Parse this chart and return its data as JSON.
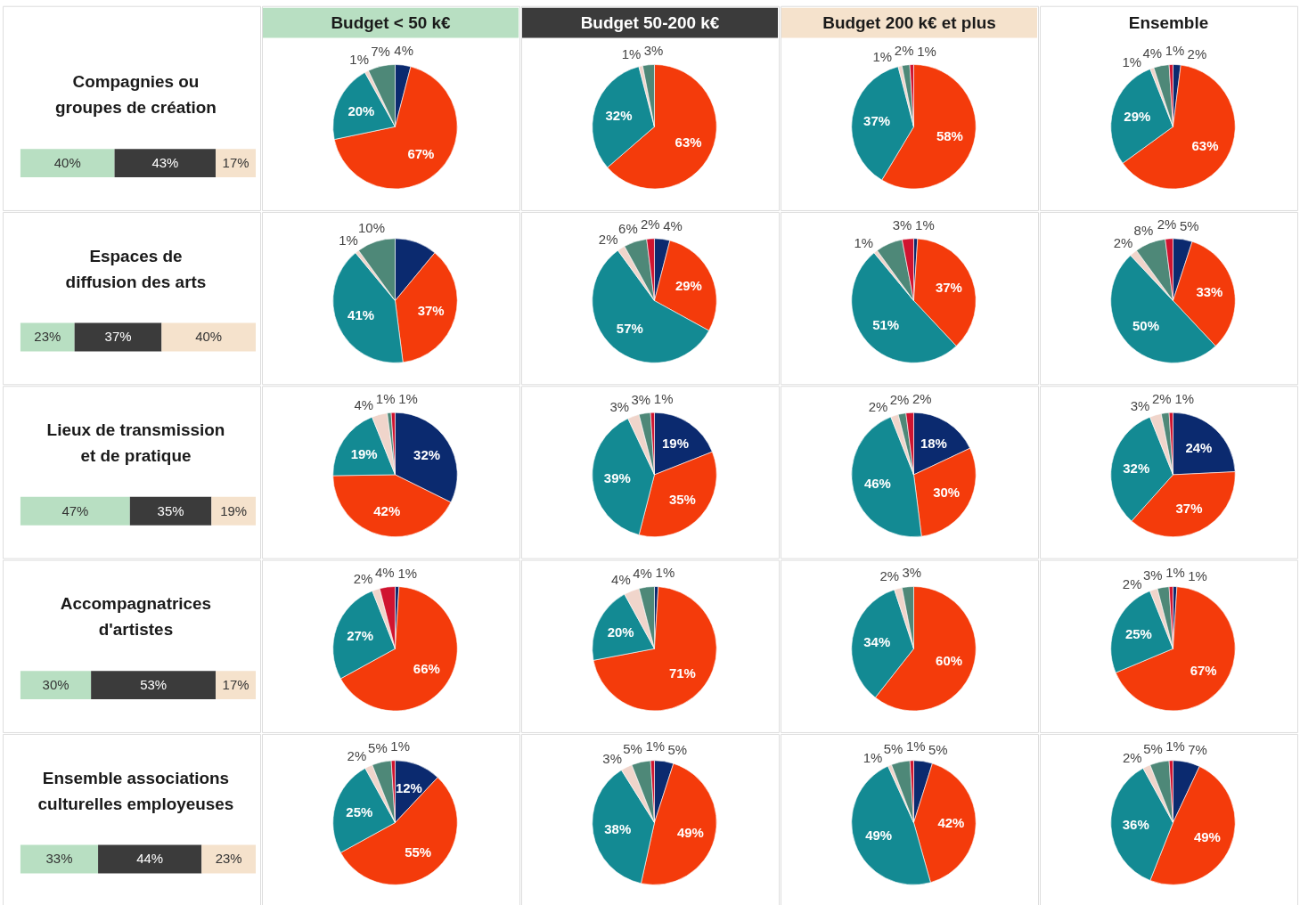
{
  "chart_data": [
    {
      "type": "bar",
      "title": "Compagnies ou groupes de création",
      "orientation": "horizontal",
      "stacked": true,
      "categories": [
        null
      ],
      "series": [
        {
          "color": "#b8dfc2",
          "values": [
            40
          ],
          "value_labels": [
            "40%"
          ]
        },
        {
          "color": "#3b3b3b",
          "values": [
            43
          ],
          "value_labels": [
            "43%"
          ]
        },
        {
          "color": "#f5e2cc",
          "values": [
            17
          ],
          "value_labels": [
            "17%"
          ]
        }
      ]
    },
    {
      "type": "pie",
      "title": "Budget < 50 k€",
      "categories": [
        null,
        null,
        null,
        null,
        null
      ],
      "values": [
        4,
        67,
        20,
        1,
        7
      ],
      "colors": [
        "#0b2a6f",
        "#f43b0b",
        "#138a93",
        "#f0d5cb",
        "#4e8878"
      ],
      "value_labels": [
        "4%",
        "67%",
        "20%",
        "1%",
        "7%"
      ]
    },
    {
      "type": "pie",
      "title": "Budget 50-200 k€",
      "categories": [
        null,
        null,
        null,
        null
      ],
      "values": [
        63,
        32,
        1,
        3
      ],
      "colors": [
        "#f43b0b",
        "#138a93",
        "#f0d5cb",
        "#4e8878"
      ],
      "value_labels": [
        "63%",
        "32%",
        "1%",
        "3%"
      ]
    },
    {
      "type": "pie",
      "title": "Budget 200 k€ et plus",
      "categories": [
        null,
        null,
        null,
        null,
        null
      ],
      "values": [
        58,
        37,
        1,
        2,
        1
      ],
      "colors": [
        "#f43b0b",
        "#138a93",
        "#f0d5cb",
        "#4e8878",
        "#d01430"
      ],
      "value_labels": [
        "58%",
        "37%",
        "1%",
        "2%",
        "1%"
      ]
    },
    {
      "type": "pie",
      "title": "Ensemble",
      "categories": [
        null,
        null,
        null,
        null,
        null,
        null
      ],
      "values": [
        2,
        63,
        29,
        1,
        4,
        1
      ],
      "colors": [
        "#0b2a6f",
        "#f43b0b",
        "#138a93",
        "#f0d5cb",
        "#4e8878",
        "#d01430"
      ],
      "value_labels": [
        "2%",
        "63%",
        "29%",
        "1%",
        "4%",
        "1%"
      ]
    },
    {
      "type": "bar",
      "title": "Espaces de diffusion des arts",
      "orientation": "horizontal",
      "stacked": true,
      "categories": [
        null
      ],
      "series": [
        {
          "color": "#b8dfc2",
          "values": [
            23
          ],
          "value_labels": [
            "23%"
          ]
        },
        {
          "color": "#3b3b3b",
          "values": [
            37
          ],
          "value_labels": [
            "37%"
          ]
        },
        {
          "color": "#f5e2cc",
          "values": [
            40
          ],
          "value_labels": [
            "40%"
          ]
        }
      ]
    },
    {
      "type": "pie",
      "categories": [
        null,
        null,
        null,
        null,
        null
      ],
      "values": [
        11,
        37,
        41,
        1,
        10
      ],
      "colors": [
        "#0b2a6f",
        "#f43b0b",
        "#138a93",
        "#f0d5cb",
        "#4e8878"
      ],
      "value_labels": [
        null,
        "37%",
        "41%",
        "1%",
        "10%"
      ]
    },
    {
      "type": "pie",
      "categories": [
        null,
        null,
        null,
        null,
        null,
        null
      ],
      "values": [
        4,
        29,
        57,
        2,
        6,
        2
      ],
      "colors": [
        "#0b2a6f",
        "#f43b0b",
        "#138a93",
        "#f0d5cb",
        "#4e8878",
        "#d01430"
      ],
      "value_labels": [
        "4%",
        "29%",
        "57%",
        "2%",
        "6%",
        "2%"
      ]
    },
    {
      "type": "pie",
      "categories": [
        null,
        null,
        null,
        null,
        null,
        null
      ],
      "values": [
        1,
        37,
        51,
        1,
        7,
        3
      ],
      "colors": [
        "#0b2a6f",
        "#f43b0b",
        "#138a93",
        "#f0d5cb",
        "#4e8878",
        "#d01430"
      ],
      "value_labels": [
        "1%",
        "37%",
        "51%",
        "1%",
        null,
        "3%"
      ]
    },
    {
      "type": "pie",
      "categories": [
        null,
        null,
        null,
        null,
        null,
        null
      ],
      "values": [
        5,
        33,
        50,
        2,
        8,
        2
      ],
      "colors": [
        "#0b2a6f",
        "#f43b0b",
        "#138a93",
        "#f0d5cb",
        "#4e8878",
        "#d01430"
      ],
      "value_labels": [
        "5%",
        "33%",
        "50%",
        "2%",
        "8%",
        "2%"
      ]
    },
    {
      "type": "bar",
      "title": "Lieux de transmission et de pratique",
      "orientation": "horizontal",
      "stacked": true,
      "categories": [
        null
      ],
      "series": [
        {
          "color": "#b8dfc2",
          "values": [
            47
          ],
          "value_labels": [
            "47%"
          ]
        },
        {
          "color": "#3b3b3b",
          "values": [
            35
          ],
          "value_labels": [
            "35%"
          ]
        },
        {
          "color": "#f5e2cc",
          "values": [
            19
          ],
          "value_labels": [
            "19%"
          ]
        }
      ]
    },
    {
      "type": "pie",
      "categories": [
        null,
        null,
        null,
        null,
        null,
        null
      ],
      "values": [
        32,
        42,
        19,
        4,
        1,
        1
      ],
      "colors": [
        "#0b2a6f",
        "#f43b0b",
        "#138a93",
        "#f0d5cb",
        "#4e8878",
        "#d01430"
      ],
      "value_labels": [
        "32%",
        "42%",
        "19%",
        "4%",
        "1%",
        "1%"
      ]
    },
    {
      "type": "pie",
      "categories": [
        null,
        null,
        null,
        null,
        null,
        null
      ],
      "values": [
        19,
        35,
        39,
        3,
        3,
        1
      ],
      "colors": [
        "#0b2a6f",
        "#f43b0b",
        "#138a93",
        "#f0d5cb",
        "#4e8878",
        "#d01430"
      ],
      "value_labels": [
        "19%",
        "35%",
        "39%",
        "3%",
        "3%",
        "1%"
      ]
    },
    {
      "type": "pie",
      "categories": [
        null,
        null,
        null,
        null,
        null,
        null
      ],
      "values": [
        18,
        30,
        46,
        2,
        2,
        2
      ],
      "colors": [
        "#0b2a6f",
        "#f43b0b",
        "#138a93",
        "#f0d5cb",
        "#4e8878",
        "#d01430"
      ],
      "value_labels": [
        "18%",
        "30%",
        "46%",
        "2%",
        "2%",
        "2%"
      ]
    },
    {
      "type": "pie",
      "categories": [
        null,
        null,
        null,
        null,
        null,
        null
      ],
      "values": [
        24,
        37,
        32,
        3,
        2,
        1
      ],
      "colors": [
        "#0b2a6f",
        "#f43b0b",
        "#138a93",
        "#f0d5cb",
        "#4e8878",
        "#d01430"
      ],
      "value_labels": [
        "24%",
        "37%",
        "32%",
        "3%",
        "2%",
        "1%"
      ]
    },
    {
      "type": "bar",
      "title": "Accompagnatrices d'artistes",
      "orientation": "horizontal",
      "stacked": true,
      "categories": [
        null
      ],
      "series": [
        {
          "color": "#b8dfc2",
          "values": [
            30
          ],
          "value_labels": [
            "30%"
          ]
        },
        {
          "color": "#3b3b3b",
          "values": [
            53
          ],
          "value_labels": [
            "53%"
          ]
        },
        {
          "color": "#f5e2cc",
          "values": [
            17
          ],
          "value_labels": [
            "17%"
          ]
        }
      ]
    },
    {
      "type": "pie",
      "categories": [
        null,
        null,
        null,
        null,
        null
      ],
      "values": [
        1,
        66,
        27,
        2,
        4
      ],
      "colors": [
        "#0b2a6f",
        "#f43b0b",
        "#138a93",
        "#f0d5cb",
        "#d01430"
      ],
      "value_labels": [
        "1%",
        "66%",
        "27%",
        "2%",
        "4%"
      ]
    },
    {
      "type": "pie",
      "categories": [
        null,
        null,
        null,
        null,
        null
      ],
      "values": [
        1,
        71,
        20,
        4,
        4
      ],
      "colors": [
        "#0b2a6f",
        "#f43b0b",
        "#138a93",
        "#f0d5cb",
        "#4e8878"
      ],
      "value_labels": [
        "1%",
        "71%",
        "20%",
        "4%",
        "4%"
      ]
    },
    {
      "type": "pie",
      "categories": [
        null,
        null,
        null,
        null
      ],
      "values": [
        60,
        34,
        2,
        3
      ],
      "colors": [
        "#f43b0b",
        "#138a93",
        "#f0d5cb",
        "#4e8878"
      ],
      "value_labels": [
        "60%",
        "34%",
        "2%",
        "3%"
      ]
    },
    {
      "type": "pie",
      "categories": [
        null,
        null,
        null,
        null,
        null,
        null
      ],
      "values": [
        1,
        67,
        25,
        2,
        3,
        1
      ],
      "colors": [
        "#0b2a6f",
        "#f43b0b",
        "#138a93",
        "#f0d5cb",
        "#4e8878",
        "#d01430"
      ],
      "value_labels": [
        "1%",
        "67%",
        "25%",
        "2%",
        "3%",
        "1%"
      ]
    },
    {
      "type": "bar",
      "title": "Ensemble associations culturelles employeuses",
      "orientation": "horizontal",
      "stacked": true,
      "categories": [
        null
      ],
      "series": [
        {
          "color": "#b8dfc2",
          "values": [
            33
          ],
          "value_labels": [
            "33%"
          ]
        },
        {
          "color": "#3b3b3b",
          "values": [
            44
          ],
          "value_labels": [
            "44%"
          ]
        },
        {
          "color": "#f5e2cc",
          "values": [
            23
          ],
          "value_labels": [
            "23%"
          ]
        }
      ]
    },
    {
      "type": "pie",
      "categories": [
        null,
        null,
        null,
        null,
        null,
        null
      ],
      "values": [
        12,
        55,
        25,
        2,
        5,
        1
      ],
      "colors": [
        "#0b2a6f",
        "#f43b0b",
        "#138a93",
        "#f0d5cb",
        "#4e8878",
        "#d01430"
      ],
      "value_labels": [
        "12%",
        "55%",
        "25%",
        "2%",
        "5%",
        "1%"
      ]
    },
    {
      "type": "pie",
      "categories": [
        null,
        null,
        null,
        null,
        null,
        null
      ],
      "values": [
        5,
        49,
        38,
        3,
        5,
        1
      ],
      "colors": [
        "#0b2a6f",
        "#f43b0b",
        "#138a93",
        "#f0d5cb",
        "#4e8878",
        "#d01430"
      ],
      "value_labels": [
        "5%",
        "49%",
        "38%",
        "3%",
        "5%",
        "1%"
      ]
    },
    {
      "type": "pie",
      "categories": [
        null,
        null,
        null,
        null,
        null,
        null
      ],
      "values": [
        5,
        42,
        49,
        1,
        5,
        1
      ],
      "colors": [
        "#0b2a6f",
        "#f43b0b",
        "#138a93",
        "#f0d5cb",
        "#4e8878",
        "#d01430"
      ],
      "value_labels": [
        "5%",
        "42%",
        "49%",
        "1%",
        "5%",
        "1%"
      ]
    },
    {
      "type": "pie",
      "categories": [
        null,
        null,
        null,
        null,
        null,
        null
      ],
      "values": [
        7,
        49,
        36,
        2,
        5,
        1
      ],
      "colors": [
        "#0b2a6f",
        "#f43b0b",
        "#138a93",
        "#f0d5cb",
        "#4e8878",
        "#d01430"
      ],
      "value_labels": [
        "7%",
        "49%",
        "36%",
        "2%",
        "5%",
        "1%"
      ]
    }
  ]
}
